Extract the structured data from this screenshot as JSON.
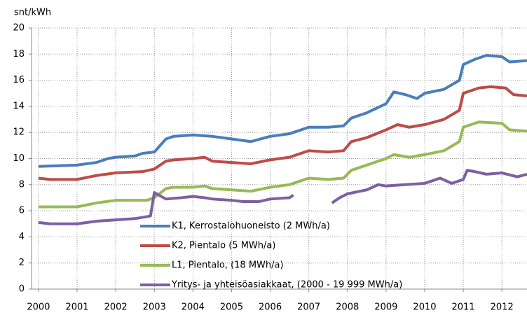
{
  "chart_data": {
    "type": "line",
    "y_label": "snt/kWh",
    "xlim": [
      1999.82,
      2012.65
    ],
    "xticks": [
      2000,
      2001,
      2002,
      2003,
      2004,
      2005,
      2006,
      2007,
      2008,
      2009,
      2010,
      2011,
      2012
    ],
    "ylim": [
      0,
      20
    ],
    "yticks": [
      0,
      2,
      4,
      6,
      8,
      10,
      12,
      14,
      16,
      18,
      20
    ],
    "grid": true,
    "legend": "bottom-center",
    "series": [
      {
        "name": "K1, Kerrostalohuoneisto (2 MWh/a)",
        "color": "#4a7ebb",
        "x": [
          2000,
          2001,
          2001.5,
          2001.8,
          2002,
          2002.5,
          2002.7,
          2003,
          2003.3,
          2003.5,
          2004,
          2004.5,
          2005,
          2005.5,
          2006,
          2006.5,
          2007,
          2007.5,
          2007.9,
          2008.1,
          2008.5,
          2009,
          2009.2,
          2009.5,
          2009.8,
          2010,
          2010.5,
          2010.9,
          2011,
          2011.3,
          2011.6,
          2012,
          2012.2,
          2012.65
        ],
        "values": [
          9.4,
          9.5,
          9.7,
          10.0,
          10.1,
          10.2,
          10.4,
          10.5,
          11.5,
          11.7,
          11.8,
          11.7,
          11.5,
          11.3,
          11.7,
          11.9,
          12.4,
          12.4,
          12.5,
          13.1,
          13.5,
          14.2,
          15.1,
          14.9,
          14.6,
          15.0,
          15.3,
          16.0,
          17.2,
          17.6,
          17.9,
          17.8,
          17.4,
          17.5
        ]
      },
      {
        "name": "K2, Pientalo  (5 MWh/a)",
        "color": "#be4b48",
        "x": [
          2000,
          2000.3,
          2001,
          2001.5,
          2002,
          2002.7,
          2003,
          2003.3,
          2003.5,
          2004,
          2004.3,
          2004.5,
          2005,
          2005.5,
          2006,
          2006.5,
          2007,
          2007.5,
          2007.9,
          2008.1,
          2008.5,
          2009,
          2009.3,
          2009.6,
          2010,
          2010.5,
          2010.9,
          2011,
          2011.4,
          2011.7,
          2012.1,
          2012.3,
          2012.65
        ],
        "values": [
          8.5,
          8.4,
          8.4,
          8.7,
          8.9,
          9.0,
          9.2,
          9.8,
          9.9,
          10.0,
          10.1,
          9.8,
          9.7,
          9.6,
          9.9,
          10.1,
          10.6,
          10.5,
          10.6,
          11.3,
          11.6,
          12.2,
          12.6,
          12.4,
          12.6,
          13.0,
          13.7,
          15.0,
          15.4,
          15.5,
          15.4,
          14.9,
          14.8
        ]
      },
      {
        "name": "L1, Pientalo, (18 MWh/a)",
        "color": "#98b954",
        "x": [
          2000,
          2001,
          2001.5,
          2002,
          2002.8,
          2003,
          2003.3,
          2003.5,
          2004,
          2004.3,
          2004.5,
          2005,
          2005.5,
          2006,
          2006.5,
          2007,
          2007.5,
          2007.9,
          2008.1,
          2008.5,
          2009,
          2009.2,
          2009.6,
          2010,
          2010.5,
          2010.9,
          2011,
          2011.4,
          2012,
          2012.2,
          2012.65
        ],
        "values": [
          6.3,
          6.3,
          6.6,
          6.8,
          6.8,
          7.0,
          7.7,
          7.8,
          7.8,
          7.9,
          7.7,
          7.6,
          7.5,
          7.8,
          8.0,
          8.5,
          8.4,
          8.5,
          9.1,
          9.5,
          10.0,
          10.3,
          10.1,
          10.3,
          10.6,
          11.3,
          12.4,
          12.8,
          12.7,
          12.2,
          12.1
        ]
      },
      {
        "name": "Yritys- ja yhteisöasiakkaat,  (2000 - 19 999 MWh/a)",
        "color": "#7d60a0",
        "x": [
          2000,
          2000.3,
          2001,
          2001.5,
          2002,
          2002.5,
          2002.9,
          2003,
          2003.3,
          2003.7,
          2004,
          2004.3,
          2004.5,
          2005,
          2005.3,
          2005.7,
          2006,
          2006.5,
          2006.6,
          2007,
          2007.6,
          2007.8,
          2008,
          2008.5,
          2008.8,
          2009,
          2009.5,
          2010,
          2010.4,
          2010.7,
          2011,
          2011.1,
          2011.3,
          2011.6,
          2012,
          2012.4,
          2012.65
        ],
        "values": [
          5.1,
          5.0,
          5.0,
          5.2,
          5.3,
          5.4,
          5.6,
          7.4,
          6.9,
          7.0,
          7.1,
          7.0,
          6.9,
          6.8,
          6.7,
          6.7,
          6.9,
          7.0,
          7.2,
          null,
          6.6,
          7.0,
          7.3,
          7.6,
          8.0,
          7.9,
          8.0,
          8.1,
          8.5,
          8.1,
          8.4,
          9.1,
          9.0,
          8.8,
          8.9,
          8.6,
          8.8
        ]
      }
    ]
  }
}
